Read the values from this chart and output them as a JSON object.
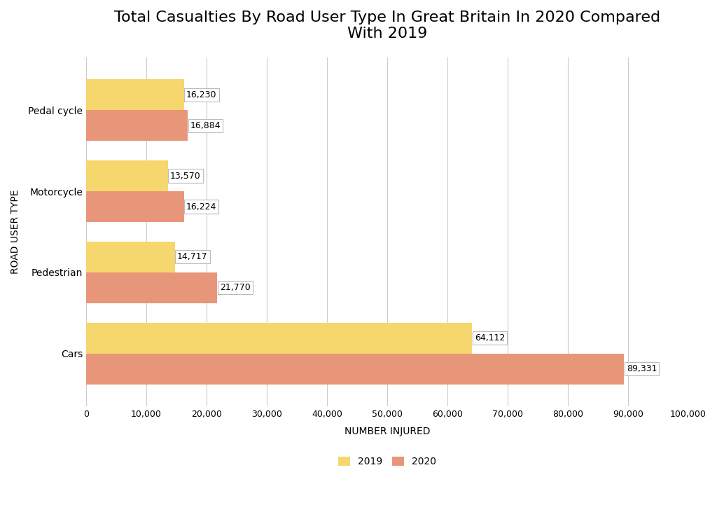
{
  "title": "Total Casualties By Road User Type In Great Britain In 2020 Compared\nWith 2019",
  "categories": [
    "Cars",
    "Pedestrian",
    "Motorcycle",
    "Pedal cycle"
  ],
  "values_2019": [
    64112,
    14717,
    13570,
    16230
  ],
  "values_2020": [
    89331,
    21770,
    16224,
    16884
  ],
  "color_2019": "#F5D76E",
  "color_2020": "#E8967A",
  "xlabel": "NUMBER INJURED",
  "ylabel": "ROAD USER TYPE",
  "xlim": [
    0,
    100000
  ],
  "xtick_step": 10000,
  "bar_height": 0.38,
  "background_color": "#FFFFFF",
  "plot_bg_color": "#FFFFFF",
  "grid_color": "#CCCCCC",
  "title_fontsize": 16,
  "label_fontsize": 10,
  "tick_fontsize": 9,
  "legend_labels": [
    "2019",
    "2020"
  ]
}
